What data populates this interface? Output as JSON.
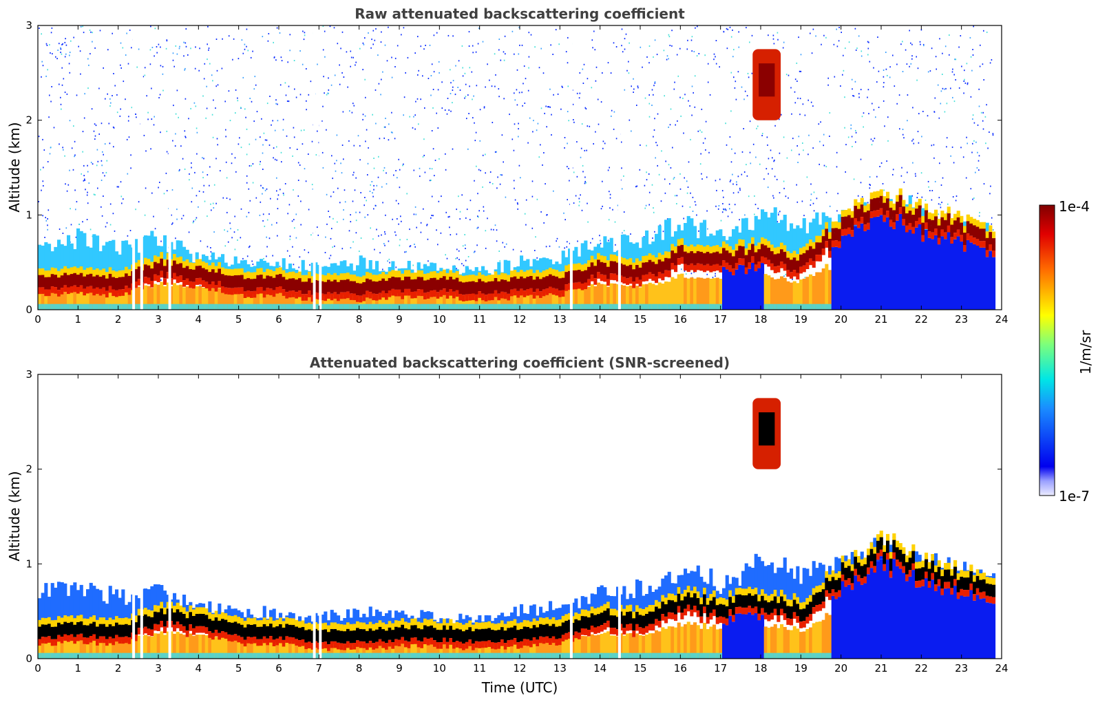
{
  "chart_data": [
    {
      "type": "heatmap",
      "title": "Raw attenuated backscattering coefficient",
      "xlabel": "",
      "ylabel": "Altitude (km)",
      "xlim": [
        0,
        24
      ],
      "ylim": [
        0,
        3
      ],
      "x_ticks": [
        "0",
        "1",
        "2",
        "3",
        "4",
        "5",
        "6",
        "7",
        "8",
        "9",
        "10",
        "11",
        "12",
        "13",
        "14",
        "15",
        "16",
        "17",
        "18",
        "19",
        "20",
        "21",
        "22",
        "23",
        "24"
      ],
      "y_ticks": [
        "0",
        "1",
        "2",
        "3"
      ],
      "layer_top_km": [
        [
          0,
          0.7
        ],
        [
          1,
          0.75
        ],
        [
          2,
          0.65
        ],
        [
          3,
          0.75
        ],
        [
          4,
          0.55
        ],
        [
          5,
          0.5
        ],
        [
          6,
          0.48
        ],
        [
          6.8,
          0.45
        ],
        [
          7.5,
          0.45
        ],
        [
          8,
          0.5
        ],
        [
          9,
          0.45
        ],
        [
          10,
          0.45
        ],
        [
          11,
          0.4
        ],
        [
          12,
          0.5
        ],
        [
          13,
          0.55
        ],
        [
          14,
          0.7
        ],
        [
          15,
          0.75
        ],
        [
          16,
          0.9
        ],
        [
          17,
          0.8
        ],
        [
          18,
          1.0
        ],
        [
          19,
          0.9
        ],
        [
          20,
          0.95
        ],
        [
          21,
          1.2
        ],
        [
          22,
          1.0
        ],
        [
          23,
          0.9
        ],
        [
          23.8,
          0.8
        ]
      ],
      "max_backscatter_km": [
        [
          0,
          0.3
        ],
        [
          1,
          0.32
        ],
        [
          2,
          0.3
        ],
        [
          3,
          0.45
        ],
        [
          4,
          0.4
        ],
        [
          5,
          0.3
        ],
        [
          6,
          0.3
        ],
        [
          7,
          0.25
        ],
        [
          8,
          0.25
        ],
        [
          9,
          0.28
        ],
        [
          10,
          0.28
        ],
        [
          11,
          0.25
        ],
        [
          12,
          0.28
        ],
        [
          13,
          0.3
        ],
        [
          14,
          0.45
        ],
        [
          15,
          0.4
        ],
        [
          16,
          0.6
        ],
        [
          17,
          0.55
        ],
        [
          18,
          0.6
        ],
        [
          19,
          0.5
        ],
        [
          20,
          0.9
        ],
        [
          21,
          1.15
        ],
        [
          22,
          0.95
        ],
        [
          23,
          0.85
        ],
        [
          23.8,
          0.7
        ]
      ],
      "elevated_layer": {
        "x": [
          17.8,
          18.5
        ],
        "altitude_km": [
          2.0,
          2.75
        ]
      },
      "data_gaps_utc": [
        2.35,
        2.55,
        3.25,
        6.85,
        7.0,
        13.25,
        14.45
      ]
    },
    {
      "type": "heatmap",
      "title": "Attenuated backscattering coefficient (SNR-screened)",
      "xlabel": "Time (UTC)",
      "ylabel": "Altitude (km)",
      "xlim": [
        0,
        24
      ],
      "ylim": [
        0,
        3
      ],
      "x_ticks": [
        "0",
        "1",
        "2",
        "3",
        "4",
        "5",
        "6",
        "7",
        "8",
        "9",
        "10",
        "11",
        "12",
        "13",
        "14",
        "15",
        "16",
        "17",
        "18",
        "19",
        "20",
        "21",
        "22",
        "23",
        "24"
      ],
      "y_ticks": [
        "0",
        "1",
        "2",
        "3"
      ],
      "screening": "SNR-screened"
    }
  ],
  "colorbar": {
    "label": "1/m/sr",
    "max_label": "1e-4",
    "min_label": "1e-7",
    "scale": "log",
    "colormap": "jet",
    "range": [
      1e-07,
      0.0001
    ]
  }
}
